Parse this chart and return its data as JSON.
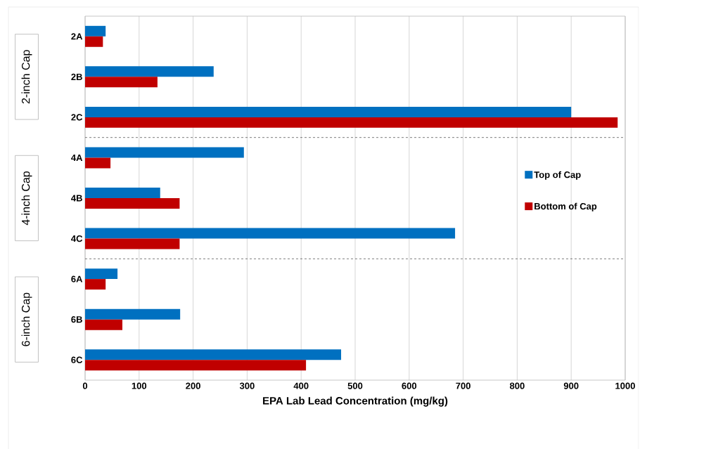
{
  "chart_data": {
    "type": "bar",
    "orientation": "horizontal",
    "xlabel": "EPA Lab Lead Concentration (mg/kg)",
    "categories": [
      "2A",
      "2B",
      "2C",
      "4A",
      "4B",
      "4C",
      "6A",
      "6B",
      "6C"
    ],
    "series": [
      {
        "name": "Top of Cap",
        "color": "#0070c0",
        "values": [
          38,
          238,
          900,
          294,
          139,
          685,
          60,
          176,
          474
        ]
      },
      {
        "name": "Bottom of Cap",
        "color": "#c00000",
        "values": [
          33,
          134,
          986,
          47,
          175,
          175,
          38,
          69,
          409
        ]
      }
    ],
    "xlim": [
      0,
      1000
    ],
    "xticks": [
      0,
      100,
      200,
      300,
      400,
      500,
      600,
      700,
      800,
      900,
      1000
    ],
    "annotations": [
      "2-inch Cap",
      "4-inch Cap",
      "6-inch Cap"
    ],
    "grid": "x",
    "legend": "right"
  }
}
